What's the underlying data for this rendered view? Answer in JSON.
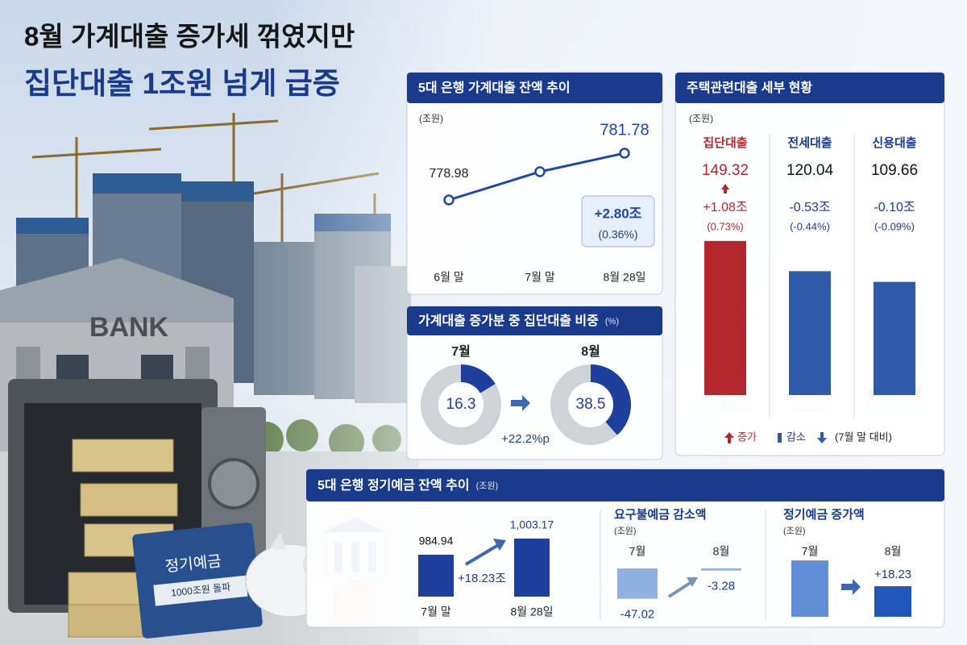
{
  "headline": {
    "line1": "8월 가계대출 증가세 꺾였지만",
    "line2": "집단대출 1조원 넘게 급증"
  },
  "illustration": {
    "bank_sign": "BANK",
    "book_title": "정기예금",
    "book_subtitle": "1000조원 돌파"
  },
  "chart_data": [
    {
      "type": "line",
      "title": "5대 은행 가계대출 잔액 추이",
      "unit": "(조원)",
      "categories": [
        "6월 말",
        "7월 말",
        "8월 28일"
      ],
      "values": [
        778.98,
        780.67,
        781.78
      ],
      "color": "#1f47a8",
      "annotations": [
        "+2.80조",
        "(0.36%)"
      ]
    },
    {
      "type": "donut",
      "title": "가계대출 증가분 중 집단대출 비중",
      "unit": "(%)",
      "categories": [
        "7월",
        "8월"
      ],
      "values": [
        16.3,
        38.5
      ],
      "color": "#1f3f9c",
      "annotations": [
        "+22.2%p"
      ]
    },
    {
      "type": "bar",
      "title": "주택관련대출 세부 현황",
      "unit": "(조원)",
      "categories": [
        "집단대출",
        "전세대출",
        "신용대출"
      ],
      "values": [
        149.32,
        120.04,
        109.66
      ],
      "colors": [
        "#b3262b",
        "#2f5aa8",
        "#2f5aa8"
      ],
      "changes": [
        "+1.08조",
        "-0.53조",
        "-0.10조"
      ],
      "change_pcts": [
        "(0.73%)",
        "(-0.44%)",
        "(-0.09%)"
      ],
      "legend": [
        "증가",
        "감소",
        "(7월 말 대비)"
      ]
    },
    {
      "type": "bar",
      "title": "5대 은행 정기예금 잔액 추이",
      "unit": "(조원)",
      "categories": [
        "7월 말",
        "8월 28일"
      ],
      "values": [
        984.94,
        1003.17
      ],
      "value_labels": [
        "984.94",
        "1,003.17"
      ],
      "colors": [
        "#1f3f9c",
        "#1f3f9c"
      ],
      "annotations": [
        "+18.23조"
      ]
    },
    {
      "type": "bar",
      "title": "요구불예금 감소액",
      "unit": "(조원)",
      "categories": [
        "7월",
        "8월"
      ],
      "values": [
        -47.02,
        -3.28
      ],
      "colors": [
        "#8fb0e0",
        "#8fb0e0"
      ]
    },
    {
      "type": "bar",
      "title": "정기예금 증가액",
      "unit": "(조원)",
      "categories": [
        "7월",
        "8월"
      ],
      "values": [
        33.6,
        18.23
      ],
      "value_labels": [
        null,
        "+18.23"
      ],
      "colors": [
        "#5f8ed6",
        "#1f56b8"
      ]
    }
  ]
}
